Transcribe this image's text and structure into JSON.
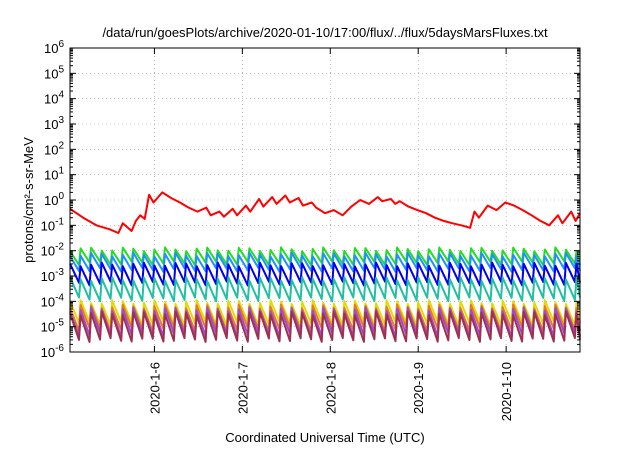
{
  "chart_data": {
    "type": "line",
    "title": "/data/run/goesPlots/archive/2020-01-10/17:00/flux/../flux/5daysMarsFluxes.txt",
    "xlabel": "Coordinated Universal Time (UTC)",
    "ylabel": "protons/cm²-s-sr-MeV",
    "y_scale": "log",
    "ylim": [
      1e-06,
      1000000.0
    ],
    "xlim": [
      0.0,
      5.8
    ],
    "grid": true,
    "x_tick_labels": [
      {
        "t": 0.96,
        "label": "2020-1-6"
      },
      {
        "t": 1.96,
        "label": "2020-1-7"
      },
      {
        "t": 2.96,
        "label": "2020-1-8"
      },
      {
        "t": 3.96,
        "label": "2020-1-9"
      },
      {
        "t": 4.96,
        "label": "2020-1-10"
      }
    ],
    "y_tick_labels": [
      {
        "exp": -6,
        "label": "10-6"
      },
      {
        "exp": -5,
        "label": "10-5"
      },
      {
        "exp": -4,
        "label": "10-4"
      },
      {
        "exp": -3,
        "label": "10-3"
      },
      {
        "exp": -2,
        "label": "10-2"
      },
      {
        "exp": -1,
        "label": "10-1"
      },
      {
        "exp": 0,
        "label": "100"
      },
      {
        "exp": 1,
        "label": "101"
      },
      {
        "exp": 2,
        "label": "102"
      },
      {
        "exp": 3,
        "label": "103"
      },
      {
        "exp": 4,
        "label": "104"
      },
      {
        "exp": 5,
        "label": "105"
      },
      {
        "exp": 6,
        "label": "106"
      }
    ],
    "series": [
      {
        "color": "#ff0000",
        "x": [
          0.0,
          0.15,
          0.3,
          0.45,
          0.55,
          0.6,
          0.7,
          0.75,
          0.8,
          0.85,
          0.9,
          0.95,
          1.05,
          1.15,
          1.25,
          1.35,
          1.45,
          1.55,
          1.6,
          1.7,
          1.75,
          1.85,
          1.9,
          2.0,
          2.05,
          2.15,
          2.2,
          2.3,
          2.35,
          2.45,
          2.5,
          2.6,
          2.65,
          2.75,
          2.8,
          2.9,
          3.0,
          3.1,
          3.2,
          3.3,
          3.4,
          3.5,
          3.55,
          3.65,
          3.7,
          3.75,
          3.85,
          3.95,
          4.05,
          4.15,
          4.25,
          4.35,
          4.45,
          4.55,
          4.6,
          4.65,
          4.75,
          4.85,
          4.95,
          5.05,
          5.15,
          5.25,
          5.35,
          5.45,
          5.55,
          5.6,
          5.7,
          5.75,
          5.8
        ],
        "y": [
          0.45,
          0.2,
          0.1,
          0.07,
          0.05,
          0.12,
          0.06,
          0.15,
          0.25,
          0.18,
          1.6,
          0.8,
          2.0,
          1.2,
          0.8,
          0.5,
          0.35,
          0.5,
          0.25,
          0.35,
          0.22,
          0.45,
          0.25,
          0.6,
          0.35,
          1.1,
          0.55,
          1.3,
          0.7,
          1.5,
          0.8,
          1.2,
          0.6,
          0.8,
          0.5,
          0.3,
          0.4,
          0.25,
          0.55,
          1.0,
          0.7,
          1.3,
          0.9,
          1.1,
          0.7,
          0.9,
          0.55,
          0.4,
          0.3,
          0.2,
          0.15,
          0.12,
          0.1,
          0.08,
          0.35,
          0.2,
          0.6,
          0.4,
          0.8,
          0.6,
          0.4,
          0.25,
          0.15,
          0.1,
          0.25,
          0.12,
          0.35,
          0.15,
          0.3
        ]
      },
      {
        "color": "#22dd22",
        "base": 0.006,
        "amp": 0.55,
        "cycle": 0.12,
        "phase": 0.0
      },
      {
        "color": "#1e90ff",
        "base": 0.0035,
        "amp": 0.6,
        "cycle": 0.12,
        "phase": 0.03
      },
      {
        "color": "#0000ee",
        "base": 0.0012,
        "amp": 0.75,
        "cycle": 0.12,
        "phase": 0.05
      },
      {
        "color": "#20c0a0",
        "base": 0.0003,
        "amp": 0.8,
        "cycle": 0.12,
        "phase": 0.02
      },
      {
        "color": "#dddd00",
        "base": 3.5e-05,
        "amp": 0.85,
        "cycle": 0.12,
        "phase": 0.04
      },
      {
        "color": "#ee7722",
        "base": 2.2e-05,
        "amp": 0.9,
        "cycle": 0.12,
        "phase": 0.01
      },
      {
        "color": "#9b4bd6",
        "base": 1.5e-05,
        "amp": 1.0,
        "cycle": 0.12,
        "phase": 0.06
      },
      {
        "color": "#a03050",
        "base": 1e-05,
        "amp": 1.05,
        "cycle": 0.12,
        "phase": 0.03
      }
    ]
  }
}
